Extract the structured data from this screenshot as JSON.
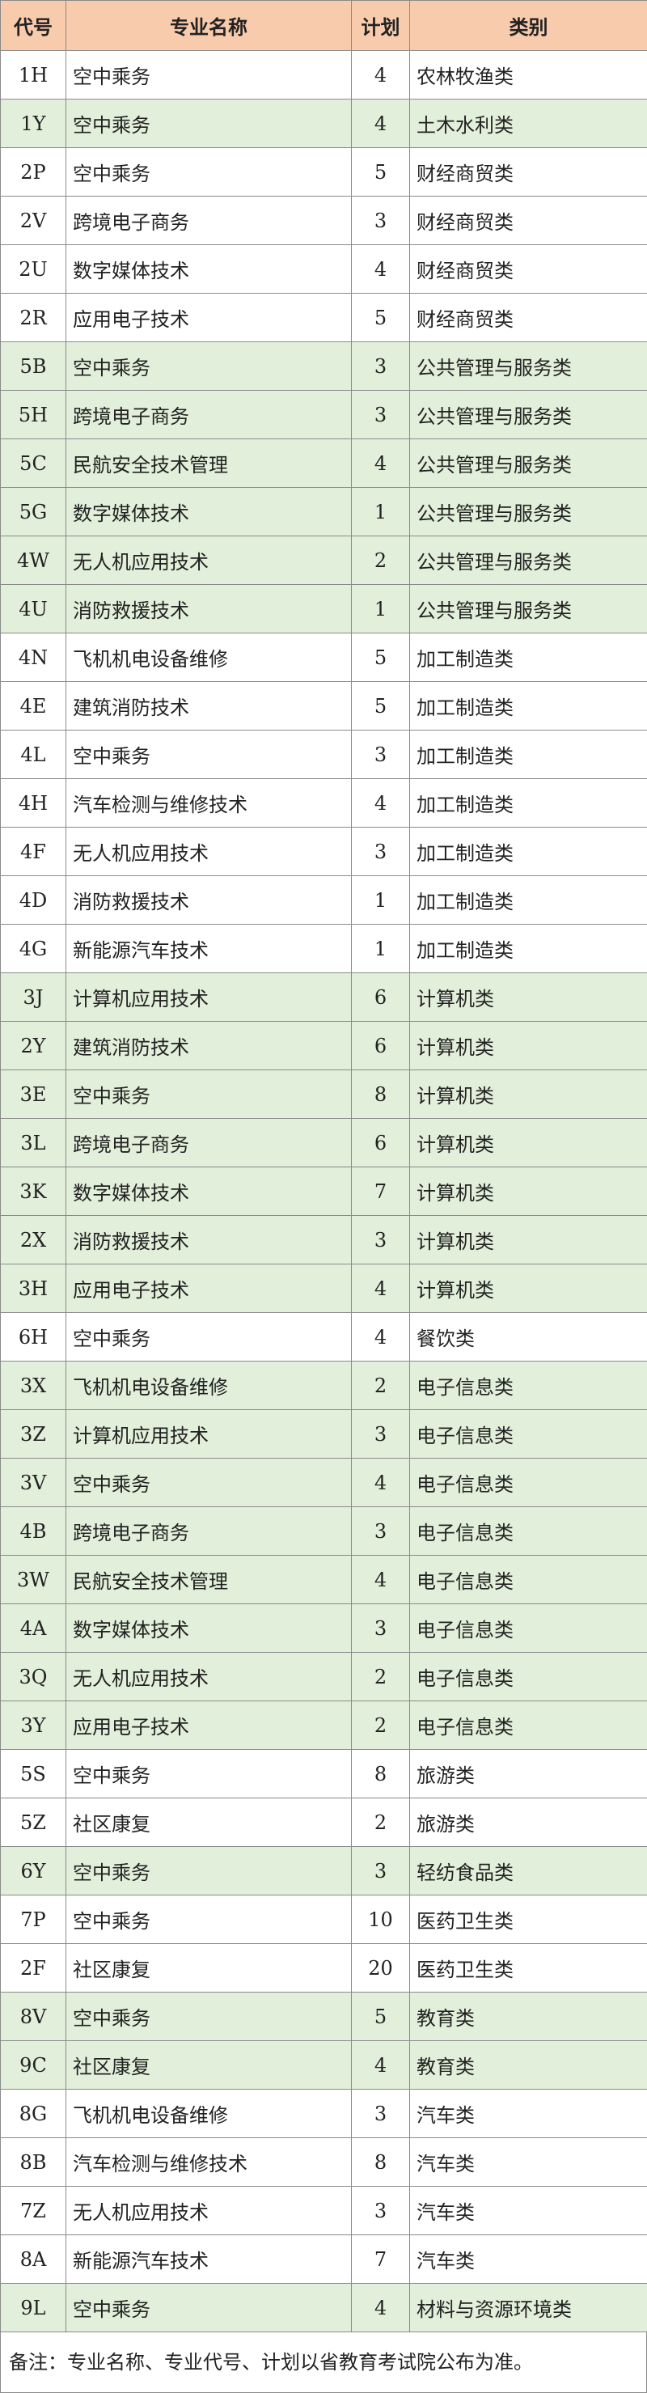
{
  "table": {
    "header": [
      "代号",
      "专业名称",
      "计划",
      "类别"
    ],
    "rows": [
      [
        "1H",
        "空中乘务",
        4,
        "农林牧渔类"
      ],
      [
        "1Y",
        "空中乘务",
        4,
        "土木水利类"
      ],
      [
        "2P",
        "空中乘务",
        5,
        "财经商贸类"
      ],
      [
        "2V",
        "跨境电子商务",
        3,
        "财经商贸类"
      ],
      [
        "2U",
        "数字媒体技术",
        4,
        "财经商贸类"
      ],
      [
        "2R",
        "应用电子技术",
        5,
        "财经商贸类"
      ],
      [
        "5B",
        "空中乘务",
        3,
        "公共管理与服务类"
      ],
      [
        "5H",
        "跨境电子商务",
        3,
        "公共管理与服务类"
      ],
      [
        "5C",
        "民航安全技术管理",
        4,
        "公共管理与服务类"
      ],
      [
        "5G",
        "数字媒体技术",
        1,
        "公共管理与服务类"
      ],
      [
        "4W",
        "无人机应用技术",
        2,
        "公共管理与服务类"
      ],
      [
        "4U",
        "消防救援技术",
        1,
        "公共管理与服务类"
      ],
      [
        "4N",
        "飞机机电设备维修",
        5,
        "加工制造类"
      ],
      [
        "4E",
        "建筑消防技术",
        5,
        "加工制造类"
      ],
      [
        "4L",
        "空中乘务",
        3,
        "加工制造类"
      ],
      [
        "4H",
        "汽车检测与维修技术",
        4,
        "加工制造类"
      ],
      [
        "4F",
        "无人机应用技术",
        3,
        "加工制造类"
      ],
      [
        "4D",
        "消防救援技术",
        1,
        "加工制造类"
      ],
      [
        "4G",
        "新能源汽车技术",
        1,
        "加工制造类"
      ],
      [
        "3J",
        "计算机应用技术",
        6,
        "计算机类"
      ],
      [
        "2Y",
        "建筑消防技术",
        6,
        "计算机类"
      ],
      [
        "3E",
        "空中乘务",
        8,
        "计算机类"
      ],
      [
        "3L",
        "跨境电子商务",
        6,
        "计算机类"
      ],
      [
        "3K",
        "数字媒体技术",
        7,
        "计算机类"
      ],
      [
        "2X",
        "消防救援技术",
        3,
        "计算机类"
      ],
      [
        "3H",
        "应用电子技术",
        4,
        "计算机类"
      ],
      [
        "6H",
        "空中乘务",
        4,
        "餐饮类"
      ],
      [
        "3X",
        "飞机机电设备维修",
        2,
        "电子信息类"
      ],
      [
        "3Z",
        "计算机应用技术",
        3,
        "电子信息类"
      ],
      [
        "3V",
        "空中乘务",
        4,
        "电子信息类"
      ],
      [
        "4B",
        "跨境电子商务",
        3,
        "电子信息类"
      ],
      [
        "3W",
        "民航安全技术管理",
        4,
        "电子信息类"
      ],
      [
        "4A",
        "数字媒体技术",
        3,
        "电子信息类"
      ],
      [
        "3Q",
        "无人机应用技术",
        2,
        "电子信息类"
      ],
      [
        "3Y",
        "应用电子技术",
        2,
        "电子信息类"
      ],
      [
        "5S",
        "空中乘务",
        8,
        "旅游类"
      ],
      [
        "5Z",
        "社区康复",
        2,
        "旅游类"
      ],
      [
        "6Y",
        "空中乘务",
        3,
        "轻纺食品类"
      ],
      [
        "7P",
        "空中乘务",
        10,
        "医药卫生类"
      ],
      [
        "2F",
        "社区康复",
        20,
        "医药卫生类"
      ],
      [
        "8V",
        "空中乘务",
        5,
        "教育类"
      ],
      [
        "9C",
        "社区康复",
        4,
        "教育类"
      ],
      [
        "8G",
        "飞机机电设备维修",
        3,
        "汽车类"
      ],
      [
        "8B",
        "汽车检测与维修技术",
        8,
        "汽车类"
      ],
      [
        "7Z",
        "无人机应用技术",
        3,
        "汽车类"
      ],
      [
        "8A",
        "新能源汽车技术",
        7,
        "汽车类"
      ],
      [
        "9L",
        "空中乘务",
        4,
        "材料与资源环境类"
      ]
    ],
    "note": "备注：专业名称、专业代号、计划以省教育考试院公布为准。"
  }
}
